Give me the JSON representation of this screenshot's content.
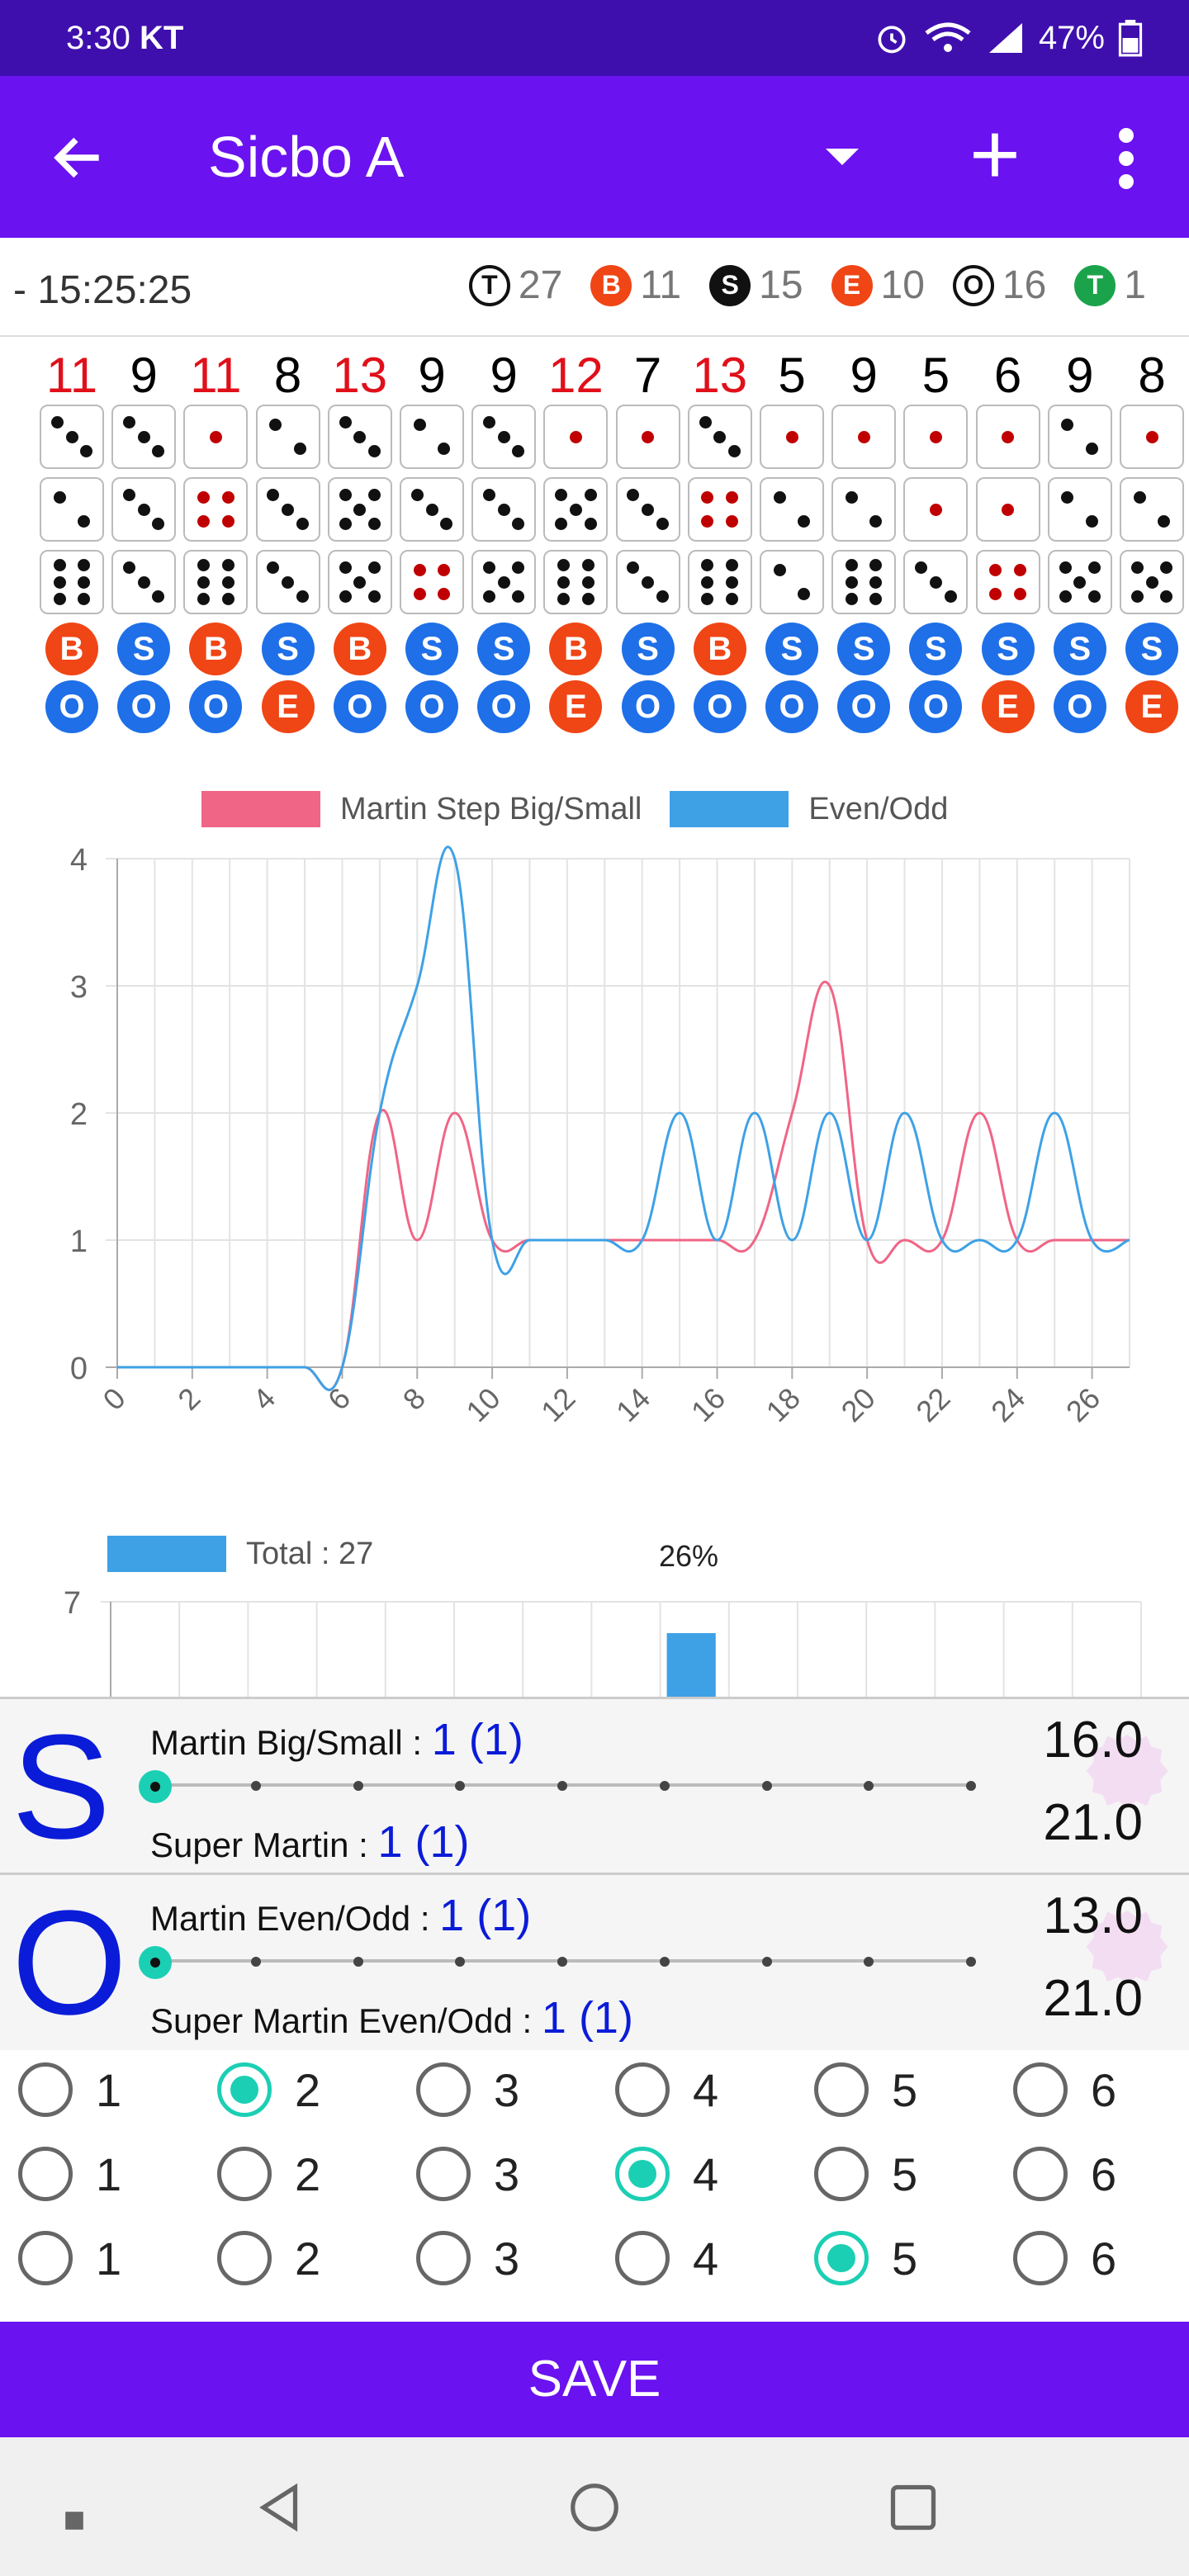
{
  "status": {
    "time": "3:30",
    "carrier": "KT",
    "battery": "47%"
  },
  "app": {
    "title": "Sicbo A"
  },
  "info": {
    "timestamp": "- 15:25:25",
    "counts": [
      {
        "letter": "T",
        "value": "27",
        "color": "#ffffff",
        "outline": true
      },
      {
        "letter": "B",
        "value": "11",
        "color": "#f04515",
        "outline": false
      },
      {
        "letter": "S",
        "value": "15",
        "color": "#111111",
        "outline": false
      },
      {
        "letter": "E",
        "value": "10",
        "color": "#f04515",
        "outline": false
      },
      {
        "letter": "O",
        "value": "16",
        "color": "#111111",
        "outline": true
      },
      {
        "letter": "T",
        "value": "1",
        "color": "#1ba34b",
        "outline": false
      }
    ]
  },
  "rolls": [
    {
      "total": "11",
      "dice": [
        3,
        2,
        6
      ],
      "bs": "B",
      "eo": "O"
    },
    {
      "total": "9",
      "dice": [
        3,
        3,
        3
      ],
      "bs": "S",
      "eo": "O"
    },
    {
      "total": "11",
      "dice": [
        1,
        4,
        6
      ],
      "bs": "B",
      "eo": "O"
    },
    {
      "total": "8",
      "dice": [
        2,
        3,
        3
      ],
      "bs": "S",
      "eo": "E"
    },
    {
      "total": "13",
      "dice": [
        3,
        5,
        5
      ],
      "bs": "B",
      "eo": "O"
    },
    {
      "total": "9",
      "dice": [
        2,
        3,
        4
      ],
      "bs": "S",
      "eo": "O"
    },
    {
      "total": "9",
      "dice": [
        3,
        3,
        5
      ],
      "bs": "S",
      "eo": "O"
    },
    {
      "total": "12",
      "dice": [
        1,
        5,
        6
      ],
      "bs": "B",
      "eo": "E"
    },
    {
      "total": "7",
      "dice": [
        1,
        3,
        3
      ],
      "bs": "S",
      "eo": "O"
    },
    {
      "total": "13",
      "dice": [
        3,
        4,
        6
      ],
      "bs": "B",
      "eo": "O"
    },
    {
      "total": "5",
      "dice": [
        1,
        2,
        2
      ],
      "bs": "S",
      "eo": "O"
    },
    {
      "total": "9",
      "dice": [
        1,
        2,
        6
      ],
      "bs": "S",
      "eo": "O"
    },
    {
      "total": "5",
      "dice": [
        1,
        1,
        3
      ],
      "bs": "S",
      "eo": "O"
    },
    {
      "total": "6",
      "dice": [
        1,
        1,
        4
      ],
      "bs": "S",
      "eo": "E"
    },
    {
      "total": "9",
      "dice": [
        2,
        2,
        5
      ],
      "bs": "S",
      "eo": "O"
    },
    {
      "total": "8",
      "dice": [
        1,
        2,
        5
      ],
      "bs": "S",
      "eo": "E"
    }
  ],
  "line_legend": [
    "Martin Step Big/Small",
    "Even/Odd"
  ],
  "bar_legend": "Total : 27",
  "bar_label": "26%",
  "chart_data": [
    {
      "type": "line",
      "title": "",
      "xlabel": "",
      "ylabel": "",
      "xlim": [
        0,
        27
      ],
      "ylim": [
        0,
        4
      ],
      "x_ticks": [
        0,
        2,
        4,
        6,
        8,
        10,
        12,
        14,
        16,
        18,
        20,
        22,
        24,
        26
      ],
      "y_ticks": [
        0,
        1,
        2,
        3,
        4
      ],
      "grid": true,
      "legend": "top",
      "series": [
        {
          "name": "Martin Step Big/Small",
          "color": "#f06585",
          "values": [
            0,
            0,
            0,
            0,
            0,
            0,
            0,
            2,
            1,
            2,
            1,
            1,
            1,
            1,
            1,
            1,
            1,
            1,
            2,
            3,
            1,
            1,
            1,
            2,
            1,
            1,
            1,
            1
          ]
        },
        {
          "name": "Even/Odd",
          "color": "#3ea1e6",
          "values": [
            0,
            0,
            0,
            0,
            0,
            0,
            0,
            2,
            3,
            4,
            1,
            1,
            1,
            1,
            1,
            2,
            1,
            2,
            1,
            2,
            1,
            2,
            1,
            1,
            1,
            2,
            1,
            1
          ]
        }
      ]
    },
    {
      "type": "bar",
      "title": "",
      "series": [
        {
          "name": "Total : 27",
          "color": "#3ea1e6"
        }
      ],
      "y_ticks": [
        7
      ],
      "highlight": {
        "category_index": 8,
        "label": "26%"
      }
    }
  ],
  "martin_bs": {
    "letter": "S",
    "label": "Martin Big/Small :",
    "value": "1 (1)",
    "super_label": "Super Martin :",
    "super_value": "1 (1)",
    "num1": "16.0",
    "num2": "21.0",
    "slider_position": 0
  },
  "martin_eo": {
    "letter": "O",
    "label": "Martin Even/Odd :",
    "value": "1 (1)",
    "super_label": "Super Martin Even/Odd :",
    "super_value": "1 (1)",
    "num1": "13.0",
    "num2": "21.0",
    "slider_position": 0
  },
  "radio_rows": [
    {
      "options": [
        "1",
        "2",
        "3",
        "4",
        "5",
        "6"
      ],
      "selected": 1
    },
    {
      "options": [
        "1",
        "2",
        "3",
        "4",
        "5",
        "6"
      ],
      "selected": 3
    },
    {
      "options": [
        "1",
        "2",
        "3",
        "4",
        "5",
        "6"
      ],
      "selected": 4
    }
  ],
  "save_label": "SAVE",
  "colors": {
    "accent": "#6a12f0",
    "statusbar": "#3f0fae",
    "big": "#f04515",
    "small": "#1e6fe8",
    "teal": "#1bcfb4"
  }
}
